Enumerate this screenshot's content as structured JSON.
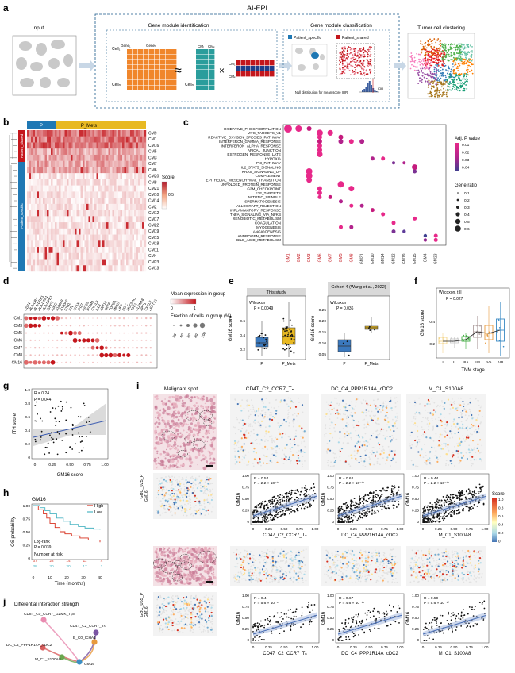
{
  "panels": {
    "a": {
      "letter": "a",
      "framework": "AI-EPI",
      "input": "Input",
      "gmi_title": "Gene module identification",
      "gmc_title": "Gene module classification",
      "clustering": "Tumor cell clustering",
      "gene1": "Gene₁",
      "genen": "Geneₙ",
      "dots": "···",
      "cell1": "Cell₁",
      "cellm": "Cellₘ",
      "cm1": "CM₁",
      "cmk": "CMₖ",
      "approx": "≈",
      "times": "×",
      "patient_specific": "Patient_specific",
      "patient_shared": "Patient_shared",
      "null_dist": "Null distribution for mean score IQR",
      "iqr": "IQR"
    },
    "b": {
      "letter": "b",
      "group_p": "P",
      "group_pmets": "P_Mets",
      "side_top": "Patient_shared",
      "side_bottom": "Patient_specific",
      "rows": [
        "CM9",
        "CM1",
        "CM16",
        "CM5",
        "CM3",
        "CM7",
        "CM6",
        "CM20",
        "CM8",
        "CM21",
        "CM10",
        "CM14",
        "CM2",
        "CM12",
        "CM17",
        "CM22",
        "CM19",
        "CM15",
        "CM18",
        "CM11",
        "CM4",
        "CM23",
        "CM13"
      ],
      "score_label": "Score",
      "score_tick": "0.5"
    },
    "c": {
      "letter": "c",
      "terms": [
        "OXIDATIVE_PHOSPHORYLATION",
        "MYC_TARGETS_V1",
        "REACTIVE_OXYGEN_SPECIES_PATHWAY",
        "INTERFERON_GAMMA_RESPONSE",
        "INTERFERON_ALPHA_RESPONSE",
        "APICAL_JUNCTION",
        "ESTROGEN_RESPONSE_LATE",
        "HYPOXIA",
        "PI3_PATHWAY",
        "IL2_STAT5_SIGNALING",
        "KRAS_SIGNALING_UP",
        "COMPLEMENT",
        "EPITHELIAL_MESENCHYMAL_TRANSITION",
        "UNFOLDED_PROTEIN_RESPONSE",
        "G2M_CHECKPOINT",
        "E2F_TARGETS",
        "MITOTIC_SPINDLE",
        "SPERMATOGENESIS",
        "ALLOGRAFT_REJECTION",
        "INFLAMMATORY_RESPONSE",
        "TNFA_SIGNALING_VIA_NFKB",
        "XENOBIOTIC_METABOLISM",
        "COAGULATION",
        "MYOGENESIS",
        "ANGIOGENESIS",
        "ANDROGEN_RESPONSE",
        "BILE_ACID_METABOLISM"
      ],
      "modules": [
        "GM1",
        "GM2",
        "GM3",
        "GM6",
        "GM7",
        "GM5",
        "GM8",
        "GM21",
        "GM10",
        "GM14",
        "GM12",
        "GM19",
        "GM15",
        "GM4",
        "GM23"
      ],
      "legend_title": "Adj. P value",
      "legend_ticks": [
        "0.01",
        "0.02",
        "0.03",
        "0.04"
      ],
      "ratio_title": "Gene ratio",
      "ratio_ticks": [
        "0.1",
        "0.2",
        "0.3",
        "0.4",
        "0.5",
        "0.6"
      ]
    },
    "d": {
      "letter": "d",
      "genes": [
        "CD74",
        "HLA-DRA",
        "HLA-DRB1",
        "HLA-DPA1",
        "HLA-DPB1",
        "IGHG1",
        "IGKC",
        "S100A8",
        "S100A9",
        "FTH1",
        "FTL",
        "MT1X",
        "IFI27",
        "ISG15",
        "IFITM3",
        "CXCL8",
        "IL1B",
        "KRT19",
        "KRT8",
        "TOP2A",
        "MKI67",
        "LIPF",
        "PGC",
        "MUC5AC",
        "TFF1",
        "CLDN18",
        "SPP1",
        "CXCL2",
        "LEFTY1"
      ],
      "rows": [
        "CM1",
        "CM3",
        "CM5",
        "CM6",
        "CM7",
        "CM8",
        "CM16"
      ],
      "mean_title": "Mean expression in group",
      "mean_ticks": [
        "0",
        "1"
      ],
      "frac_title": "Fraction of cells in group (%)",
      "frac_ticks": [
        "20",
        "40",
        "60",
        "80",
        "100"
      ]
    },
    "e": {
      "letter": "e",
      "left_strip": "This study",
      "right_strip": "Cohort 4 (Wang et al., 2022)",
      "ylabel": "GM16 score",
      "left_test": "Wilcoxon",
      "left_p": "P = 0.0049",
      "right_test": "Wilcoxon",
      "right_p": "P = 0.036",
      "left_yticks": [
        "0.2",
        "0.4",
        "0.6"
      ],
      "right_yticks": [
        "0.05",
        "0.10",
        "0.15",
        "0.20",
        "0.25"
      ],
      "xcats": [
        "P",
        "P_Mets"
      ]
    },
    "f": {
      "letter": "f",
      "test": "Wilcoxon, tIII",
      "p": "P = 0.027",
      "ylabel": "GM16 score",
      "xlabel": "TNM stage",
      "stages": [
        "I",
        "II",
        "IIIA",
        "IIIB",
        "IVA",
        "IVB"
      ],
      "yticks": [
        "0.2",
        "0.4"
      ]
    },
    "g": {
      "letter": "g",
      "r": "R = 0.24",
      "p": "P = 0.044",
      "ylabel": "ITH score",
      "xlabel": "GM16 score",
      "xticks": [
        "0",
        "0.25",
        "0.50",
        "0.75",
        "1.00"
      ],
      "yticks": [
        "0",
        "0.2",
        "0.4",
        "0.6",
        "0.8",
        "1.0"
      ]
    },
    "h": {
      "letter": "h",
      "title": "GM16",
      "high": "High",
      "low": "Low",
      "logrank": "Log-rank",
      "p": "P = 0.039",
      "ylabel": "OS probability",
      "xlabel": "Time (months)",
      "risk_title": "Number at risk",
      "risk_high": [
        "37",
        "22",
        "14",
        "11",
        "4"
      ],
      "risk_low": [
        "38",
        "30",
        "20",
        "17",
        "2"
      ],
      "xticks": [
        "0",
        "10",
        "20",
        "30",
        "40"
      ],
      "yticks": [
        "0",
        "0.25",
        "0.50",
        "0.75",
        "1.00"
      ]
    },
    "i": {
      "letter": "i",
      "cols": [
        "Malignant spot",
        "CD4T_C2_CCR7_Tₙ",
        "DC_C4_PPP1R14A_cDC2",
        "M_C1_S100A8"
      ],
      "sample1": "GBC_025_P",
      "sample2": "GBC_055_P",
      "gm16": "GM16",
      "stats_row1": [
        [
          "R = 0.54",
          "P = 2.2 × 10⁻¹⁶"
        ],
        [
          "R = 0.62",
          "P = 2.2 × 10⁻¹⁶"
        ],
        [
          "R = 0.44",
          "P = 2.2 × 10⁻¹⁶"
        ]
      ],
      "stats_row2": [
        [
          "R = 0.4",
          "P = 5.6 × 10⁻⁶"
        ],
        [
          "R = 0.67",
          "P = 4.6 × 10⁻¹⁶"
        ],
        [
          "R = 0.59",
          "P = 5.6 × 10⁻¹²"
        ]
      ],
      "xlabels": [
        "CD47_C2_CCR7_Tₙ",
        "DC_C4_PPP1R14A_cDC2",
        "M_C1_S100A8"
      ],
      "xticks": [
        "0",
        "0.25",
        "0.50",
        "0.75",
        "1.00"
      ],
      "yticks": [
        "0",
        "0.25",
        "0.50",
        "0.75",
        "1.00"
      ],
      "score_title": "Score",
      "score_ticks": [
        "1.0",
        "0.8",
        "0.6",
        "0.4",
        "0.2",
        "0"
      ]
    },
    "j": {
      "letter": "j",
      "title": "Differential interaction strength",
      "nodes": [
        "CD8T_C0_CCR7_GZMK_Tₑₘ",
        "CD4T_C2_CCR7_Tₙ",
        "B_C0_ICHA1",
        "DC_C4_PPP1R14A_cDC2",
        "M_C1_S100A8",
        "GM16"
      ]
    }
  },
  "colors": {
    "p_group": "#1f78b4",
    "pmets_group": "#e8b923",
    "heat_high": "#c4161c",
    "high_curve": "#d7301f",
    "low_curve": "#4cb5c3",
    "scatter_fit": "#4a6fb5"
  }
}
